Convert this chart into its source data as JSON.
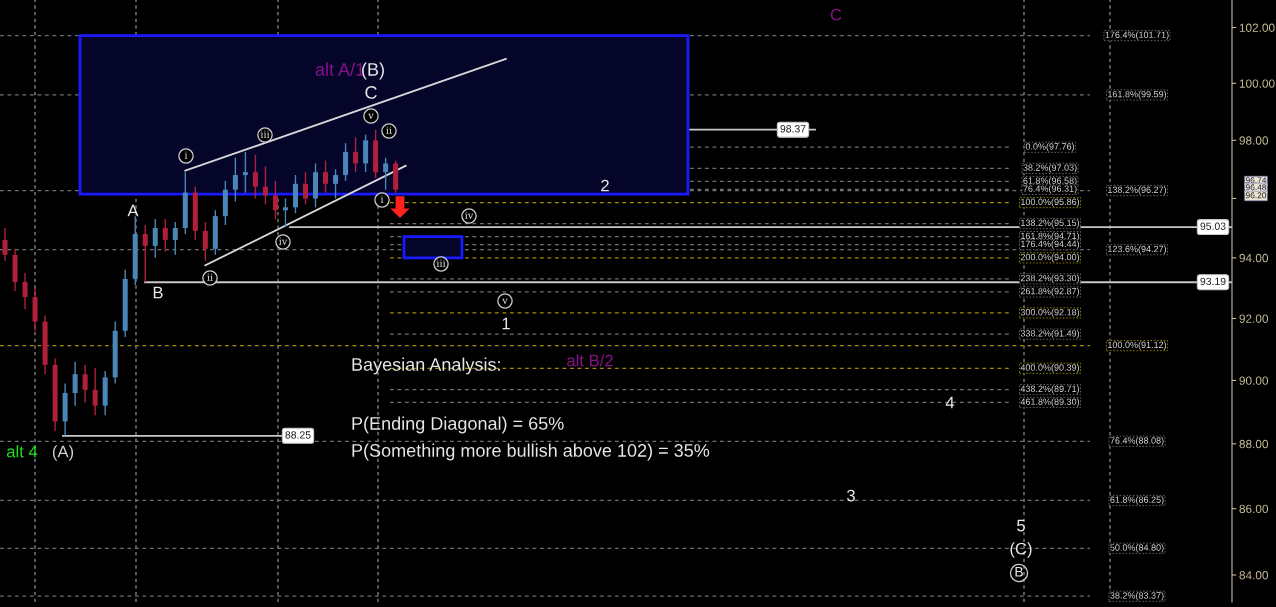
{
  "chart_data": {
    "type": "candlestick",
    "categories": [
      null,
      null,
      null,
      null,
      null,
      null,
      null,
      null,
      null,
      null,
      null,
      null,
      null,
      null,
      null,
      null,
      null,
      null,
      null,
      null,
      null,
      null,
      null,
      null,
      null,
      null,
      null,
      null,
      null,
      null,
      null,
      null,
      null,
      null,
      null,
      null,
      null,
      null,
      null,
      null,
      null,
      null,
      null,
      null,
      null,
      null,
      null,
      null,
      null,
      null,
      null,
      null,
      null,
      null,
      null,
      null,
      null,
      null,
      null,
      null,
      null,
      null,
      null,
      null,
      null,
      null,
      null,
      null,
      null,
      null,
      null,
      null,
      null,
      null,
      null,
      null,
      null,
      null,
      null,
      null,
      null,
      null,
      null,
      null,
      null,
      null,
      null,
      null,
      null,
      null,
      null,
      null,
      null,
      null,
      null,
      null,
      null,
      null,
      null,
      null,
      null,
      null,
      null,
      null,
      null,
      null,
      null,
      null,
      null,
      null,
      null,
      null,
      null,
      null,
      null,
      null,
      null,
      null,
      null,
      null,
      null,
      null,
      null
    ],
    "ohlc": [
      [
        94.6,
        95.0,
        93.9,
        94.1
      ],
      [
        94.1,
        94.3,
        92.9,
        93.2
      ],
      [
        93.2,
        93.5,
        92.3,
        92.7
      ],
      [
        92.7,
        93.0,
        91.6,
        91.9
      ],
      [
        91.9,
        92.1,
        90.2,
        90.5
      ],
      [
        90.5,
        90.7,
        88.4,
        88.7
      ],
      [
        88.7,
        89.9,
        88.25,
        89.6
      ],
      [
        89.6,
        90.6,
        89.2,
        90.2
      ],
      [
        90.2,
        90.5,
        89.3,
        89.7
      ],
      [
        89.7,
        90.4,
        88.9,
        89.2
      ],
      [
        89.2,
        90.3,
        88.9,
        90.1
      ],
      [
        90.1,
        91.9,
        89.9,
        91.6
      ],
      [
        91.6,
        93.6,
        91.4,
        93.3
      ],
      [
        93.3,
        95.4,
        93.1,
        94.8
      ],
      [
        94.8,
        95.1,
        93.19,
        94.4
      ],
      [
        94.4,
        95.3,
        94.0,
        95.0
      ],
      [
        95.0,
        95.3,
        94.2,
        94.6
      ],
      [
        94.6,
        95.2,
        94.1,
        95.0
      ],
      [
        95.0,
        96.9,
        94.8,
        96.2
      ],
      [
        96.2,
        96.4,
        94.6,
        94.9
      ],
      [
        94.9,
        95.2,
        93.9,
        94.3
      ],
      [
        94.3,
        95.6,
        94.1,
        95.4
      ],
      [
        95.4,
        96.6,
        95.1,
        96.3
      ],
      [
        96.3,
        97.4,
        95.9,
        96.8
      ],
      [
        96.8,
        97.6,
        96.2,
        96.9
      ],
      [
        96.9,
        97.5,
        96.0,
        96.4
      ],
      [
        96.4,
        97.1,
        95.8,
        96.1
      ],
      [
        96.1,
        96.6,
        95.3,
        95.6
      ],
      [
        95.6,
        96.0,
        95.03,
        95.7
      ],
      [
        95.7,
        96.8,
        95.5,
        96.5
      ],
      [
        96.5,
        96.9,
        95.8,
        96.0
      ],
      [
        96.0,
        97.2,
        95.7,
        96.9
      ],
      [
        96.9,
        97.3,
        96.2,
        96.5
      ],
      [
        96.5,
        97.0,
        96.0,
        96.8
      ],
      [
        96.8,
        97.9,
        96.6,
        97.6
      ],
      [
        97.6,
        98.1,
        96.9,
        97.2
      ],
      [
        97.2,
        98.2,
        96.9,
        98.0
      ],
      [
        98.0,
        98.37,
        96.7,
        96.9
      ],
      [
        96.9,
        97.4,
        96.3,
        97.2
      ],
      [
        97.2,
        97.3,
        96.2,
        96.3
      ],
      null,
      null,
      null,
      null,
      null,
      null,
      null,
      null,
      null,
      null,
      null,
      null,
      null,
      null,
      null,
      null,
      null,
      null,
      null,
      null,
      null,
      null,
      null,
      null,
      null,
      null,
      null,
      null,
      null,
      null,
      null,
      null,
      null,
      null,
      null,
      null,
      null,
      null,
      null,
      null,
      null,
      null,
      null,
      null,
      null,
      null,
      null,
      null,
      null,
      null,
      null,
      null,
      null,
      null,
      null,
      null,
      null,
      null,
      null,
      null,
      null,
      null,
      null,
      null,
      null,
      null,
      null,
      null,
      null,
      null,
      null,
      null,
      null,
      null,
      null,
      null,
      null,
      null,
      null,
      null,
      null,
      null,
      null
    ],
    "colors": [
      "#b0203c",
      "#b0203c",
      "#b0203c",
      "#b0203c",
      "#b0203c",
      "#b0203c",
      "#4a86b8",
      "#4a86b8",
      "#b0203c",
      "#b0203c",
      "#4a86b8",
      "#4a86b8",
      "#4a86b8",
      "#4a86b8",
      "#b0203c",
      "#4a86b8",
      "#b0203c",
      "#4a86b8",
      "#4a86b8",
      "#b0203c",
      "#b0203c",
      "#4a86b8",
      "#4a86b8",
      "#4a86b8",
      "#4a86b8",
      "#b0203c",
      "#b0203c",
      "#b0203c",
      "#4a86b8",
      "#4a86b8",
      "#b0203c",
      "#4a86b8",
      "#b0203c",
      "#4a86b8",
      "#4a86b8",
      "#b0203c",
      "#4a86b8",
      "#b0203c",
      "#4a86b8",
      "#b0203c",
      null,
      null,
      null,
      null,
      null,
      null,
      null,
      null,
      null,
      null,
      null,
      null,
      null,
      null,
      null,
      null,
      null,
      null,
      null,
      null,
      null,
      null,
      null,
      null,
      null,
      null,
      null,
      null,
      null,
      null,
      null,
      null,
      null,
      null,
      null,
      null,
      null,
      null,
      null,
      null,
      null,
      null,
      null,
      null,
      null,
      null,
      null,
      null,
      null,
      null,
      null,
      null,
      null,
      null,
      null,
      null,
      null,
      null,
      null,
      null,
      null,
      null,
      null,
      null,
      null,
      null,
      null,
      null,
      null,
      null,
      null,
      null,
      null,
      null,
      null,
      null,
      null,
      null,
      null,
      null,
      null,
      null,
      null
    ],
    "series": [
      {
        "type": "line",
        "color": "#d8d8d8",
        "values": [
          null,
          null,
          null,
          null,
          null,
          null,
          null,
          null,
          null,
          null,
          null,
          null,
          null,
          null,
          null,
          null,
          null,
          null,
          96.95,
          null,
          null,
          null,
          null,
          null,
          null,
          null,
          null,
          null,
          null,
          null,
          null,
          null,
          null,
          null,
          null,
          null,
          null,
          null,
          null,
          null,
          null,
          null,
          null,
          null,
          null,
          null,
          null,
          null,
          null,
          null,
          100.87,
          null,
          null,
          null,
          null,
          null,
          null,
          null,
          null,
          null,
          null,
          null,
          null,
          null,
          null,
          null,
          null,
          null,
          null,
          null,
          null,
          null,
          null,
          null,
          null,
          null,
          null,
          null,
          null,
          null,
          null,
          null,
          null,
          null,
          null,
          null,
          null,
          null,
          null,
          null,
          null,
          null,
          null,
          null,
          null,
          null,
          null,
          null,
          null,
          null,
          null,
          null,
          null,
          null,
          null,
          null,
          null,
          null,
          null,
          null,
          null,
          null,
          null,
          null,
          null,
          null,
          null,
          null,
          null,
          null,
          null,
          null,
          null
        ]
      },
      {
        "type": "line",
        "color": "#d8d8d8",
        "values": [
          null,
          null,
          null,
          null,
          null,
          null,
          null,
          null,
          null,
          null,
          null,
          null,
          null,
          null,
          null,
          null,
          null,
          null,
          null,
          null,
          93.75,
          null,
          null,
          null,
          null,
          null,
          null,
          null,
          null,
          null,
          null,
          null,
          null,
          null,
          null,
          null,
          null,
          null,
          null,
          null,
          97.12,
          null,
          null,
          null,
          null,
          null,
          null,
          null,
          null,
          null,
          null,
          null,
          null,
          null,
          null,
          null,
          null,
          null,
          null,
          null,
          null,
          null,
          null,
          null,
          null,
          null,
          null,
          null,
          null,
          null,
          null,
          null,
          null,
          null,
          null,
          null,
          null,
          null,
          null,
          null,
          null,
          null,
          null,
          null,
          null,
          null,
          null,
          null,
          null,
          null,
          null,
          null,
          null,
          null,
          null,
          null,
          null,
          null,
          null,
          null,
          null,
          null,
          null,
          null,
          null,
          null,
          null,
          null,
          null,
          null,
          null,
          null,
          null,
          null,
          null,
          null,
          null,
          null,
          null,
          null,
          null,
          null,
          null
        ]
      }
    ],
    "log": true,
    "ylim": [
      83.2,
      103.0
    ],
    "yticks": [
      {
        "value": 84,
        "label": "84.00"
      },
      {
        "value": 86,
        "label": "86.00"
      },
      {
        "value": 88,
        "label": "88.00"
      },
      {
        "value": 90,
        "label": "90.00"
      },
      {
        "value": 92,
        "label": "92.00"
      },
      {
        "value": 94,
        "label": "94.00"
      },
      {
        "value": 96,
        "label": null
      },
      {
        "value": 98,
        "label": "98.00"
      },
      {
        "value": 100,
        "label": "100.00"
      },
      {
        "value": 102,
        "label": "102.00"
      }
    ],
    "tick_labels": "y",
    "grid": false,
    "ref_lines": [
      {
        "axis": "y",
        "value": 97.76,
        "label": "0.0%(97.76)",
        "color": "#707070",
        "line_style": "dashed"
      },
      {
        "axis": "y",
        "value": 97.03,
        "label": "38.2%(97.03)",
        "color": "#707070",
        "line_style": "dashed"
      },
      {
        "axis": "y",
        "value": 96.58,
        "label": "61.8%(96.58)",
        "color": "#707070",
        "line_style": "dashed"
      },
      {
        "axis": "y",
        "value": 96.31,
        "label": "76.4%(96.31)",
        "color": "#707070",
        "line_style": "dashed"
      },
      {
        "axis": "y",
        "value": 95.86,
        "label": "100.0%(95.86)",
        "color": "#a09000",
        "line_style": "dashed"
      },
      {
        "axis": "y",
        "value": 95.15,
        "label": "138.2%(95.15)",
        "color": "#707070",
        "line_style": "dashed"
      },
      {
        "axis": "y",
        "value": 94.71,
        "label": "161.8%(94.71)",
        "color": "#707070",
        "line_style": "dashed"
      },
      {
        "axis": "y",
        "value": 94.44,
        "label": "176.4%(94.44)",
        "color": "#707070",
        "line_style": "dashed"
      },
      {
        "axis": "y",
        "value": 94.0,
        "label": "200.0%(94.00)",
        "color": "#a09000",
        "line_style": "dashed"
      },
      {
        "axis": "y",
        "value": 93.3,
        "label": "238.2%(93.30)",
        "color": "#707070",
        "line_style": "dashed"
      },
      {
        "axis": "y",
        "value": 92.87,
        "label": "261.8%(92.87)",
        "color": "#707070",
        "line_style": "dashed"
      },
      {
        "axis": "y",
        "value": 92.18,
        "label": "300.0%(92.18)",
        "color": "#a09000",
        "line_style": "dashed"
      },
      {
        "axis": "y",
        "value": 91.49,
        "label": "338.2%(91.49)",
        "color": "#707070",
        "line_style": "dashed"
      },
      {
        "axis": "y",
        "value": 90.39,
        "label": "400.0%(90.39)",
        "color": "#a09000",
        "line_style": "dashed"
      },
      {
        "axis": "y",
        "value": 89.71,
        "label": "438.2%(89.71)",
        "color": "#707070",
        "line_style": "dashed"
      },
      {
        "axis": "y",
        "value": 89.3,
        "label": "461.8%(89.30)",
        "color": "#707070",
        "line_style": "dashed"
      },
      {
        "axis": "y",
        "value": 101.71,
        "label": "176.4%(101.71)",
        "color": "#707070",
        "line_style": "dashed"
      },
      {
        "axis": "y",
        "value": 99.59,
        "label": "161.8%(99.59)",
        "color": "#707070",
        "line_style": "dashed"
      },
      {
        "axis": "y",
        "value": 96.27,
        "label": "138.2%(96.27)",
        "color": "#707070",
        "line_style": "dashed"
      },
      {
        "axis": "y",
        "value": 94.27,
        "label": "123.6%(94.27)",
        "color": "#707070",
        "line_style": "dashed"
      },
      {
        "axis": "y",
        "value": 91.12,
        "label": "100.0%(91.12)",
        "color": "#a09000",
        "line_style": "dashed"
      },
      {
        "axis": "y",
        "value": 88.08,
        "label": "76.4%(88.08)",
        "color": "#707070",
        "line_style": "dashed"
      },
      {
        "axis": "y",
        "value": 86.25,
        "label": "61.8%(86.25)",
        "color": "#707070",
        "line_style": "dashed"
      },
      {
        "axis": "y",
        "value": 84.8,
        "label": "50.0%(84.80)",
        "color": "#707070",
        "line_style": "dashed"
      },
      {
        "axis": "y",
        "value": 83.37,
        "label": "38.2%(83.37)",
        "color": "#707070",
        "line_style": "dashed"
      },
      {
        "axis": "y",
        "value": 98.37,
        "label": "98.37",
        "color": "#c8c8c8",
        "line_style": "solid"
      },
      {
        "axis": "y",
        "value": 95.03,
        "label": "95.03",
        "color": "#c8c8c8",
        "line_style": "solid"
      },
      {
        "axis": "y",
        "value": 93.19,
        "label": "93.19",
        "color": "#c8c8c8",
        "line_style": "solid"
      },
      {
        "axis": "y",
        "value": 88.25,
        "label": "88.25",
        "color": "#c8c8c8",
        "line_style": "solid"
      }
    ],
    "bands": [
      {
        "axis": "y",
        "from": 96.15,
        "to": 101.71,
        "color": "#1a1aff"
      },
      {
        "axis": "y",
        "from": 94.0,
        "to": 94.71,
        "color": "#1a1aff"
      }
    ],
    "annotations": [
      "alt A/1",
      "(B)",
      "C",
      "i",
      "iii",
      "v",
      "ii",
      "i",
      "iv",
      "ii",
      "iv",
      "iii",
      "v",
      "A",
      "B",
      "1",
      "2",
      "3",
      "4",
      "5",
      "(C)",
      "B",
      "C",
      "alt B/2",
      "alt 4",
      "(A)",
      "Bayesian Analysis:",
      "P(Ending Diagonal) = 65%",
      "P(Something more bullish above 102) = 35%",
      "96.74",
      "96.48",
      "96.20"
    ]
  }
}
